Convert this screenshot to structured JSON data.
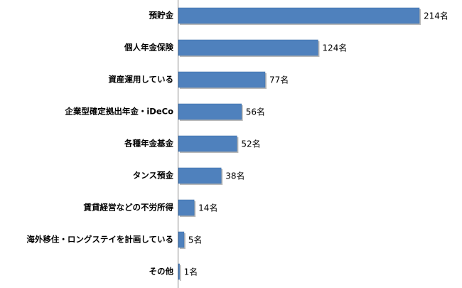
{
  "chart_data": {
    "type": "bar",
    "orientation": "horizontal",
    "categories": [
      "預貯金",
      "個人年金保険",
      "資産運用している",
      "企業型確定拠出年金・iDeCo",
      "各種年金基金",
      "タンス預金",
      "賃貸経営などの不労所得",
      "海外移住・ロングステイを計画している",
      "その他"
    ],
    "values": [
      214,
      124,
      77,
      56,
      52,
      38,
      14,
      5,
      1
    ],
    "value_labels": [
      "214名",
      "124名",
      "77名",
      "56名",
      "52名",
      "38名",
      "14名",
      "5名",
      "1名"
    ],
    "color": "#4f81bd"
  }
}
